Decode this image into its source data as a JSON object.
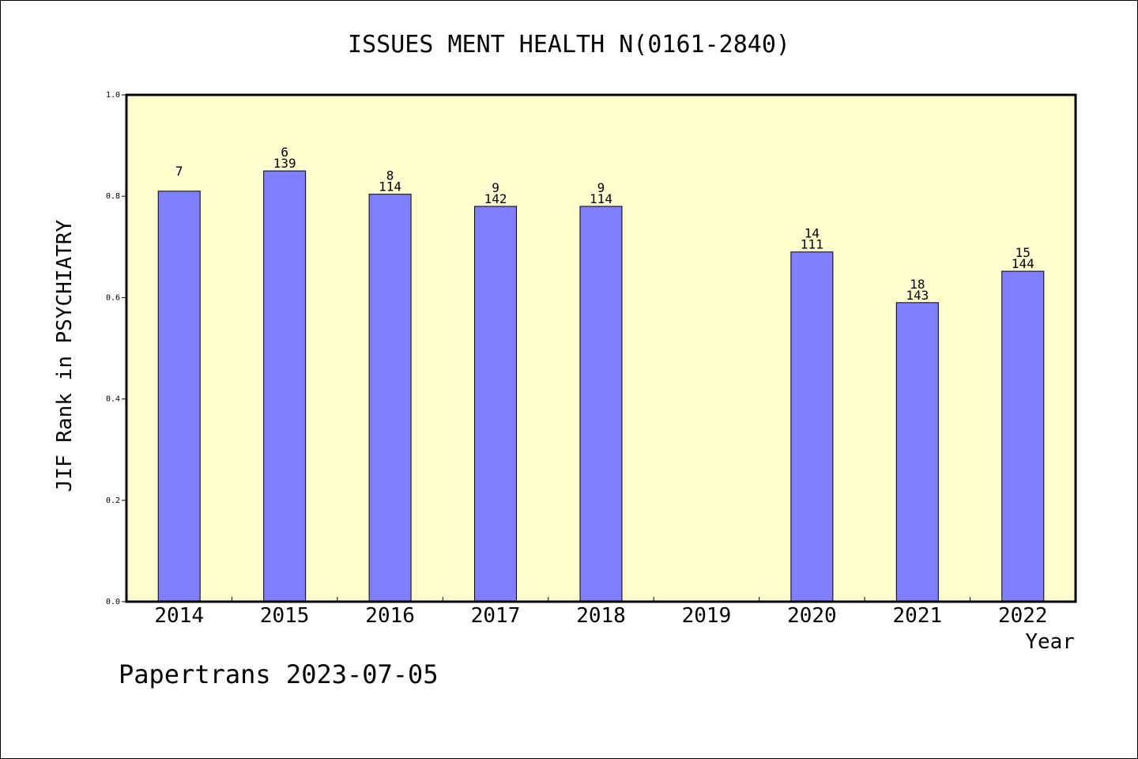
{
  "chart_data": {
    "type": "bar",
    "title": "ISSUES MENT HEALTH N(0161-2840)",
    "xlabel": "Year",
    "ylabel": "JIF Rank in PSYCHIATRY",
    "ylim": [
      0,
      1.0
    ],
    "yticks": [
      "0.0",
      "0.2",
      "0.4",
      "0.6",
      "0.8",
      "1.0"
    ],
    "grid": false,
    "colors": {
      "bar": "#8080ff",
      "plot_background": "#ffffd0",
      "frame": "#000000"
    },
    "categories": [
      "2014",
      "2015",
      "2016",
      "2017",
      "2018",
      "2019",
      "2020",
      "2021",
      "2022"
    ],
    "values": [
      0.81,
      0.85,
      0.804,
      0.78,
      0.78,
      null,
      0.69,
      0.59,
      0.652
    ],
    "rank_labels": [
      "7",
      "6",
      "8",
      "9",
      "9",
      "",
      "14",
      "18",
      "15"
    ],
    "total_labels": [
      "",
      "139",
      "114",
      "142",
      "114",
      "",
      "111",
      "143",
      "144"
    ]
  },
  "footer": {
    "text": "Papertrans 2023-07-05"
  }
}
